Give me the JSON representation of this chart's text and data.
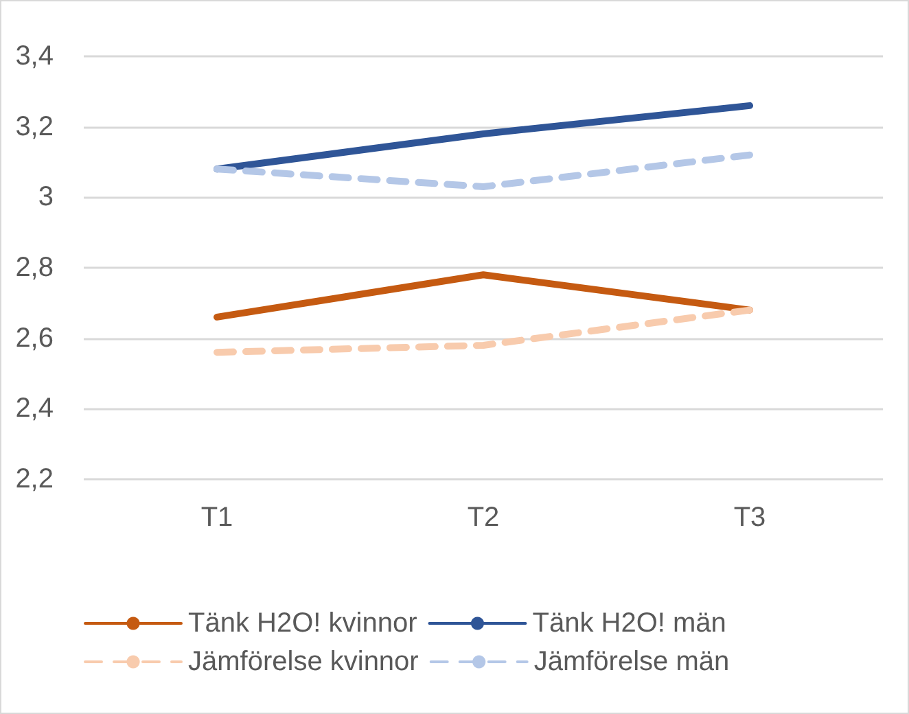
{
  "chart_data": {
    "type": "line",
    "categories": [
      "T1",
      "T2",
      "T3"
    ],
    "series": [
      {
        "name": "Tänk H2O! kvinnor",
        "color": "#c55a11",
        "line_style": "solid",
        "values": [
          2.66,
          2.78,
          2.68
        ]
      },
      {
        "name": "Tänk H2O! män",
        "color": "#2f5597",
        "line_style": "solid",
        "values": [
          3.08,
          3.18,
          3.26
        ]
      },
      {
        "name": "Jämförelse kvinnor",
        "color": "#f8cbad",
        "line_style": "dashed",
        "values": [
          2.56,
          2.58,
          2.68
        ]
      },
      {
        "name": "Jämförelse män",
        "color": "#b4c7e7",
        "line_style": "dashed",
        "values": [
          3.08,
          3.03,
          3.12
        ]
      }
    ],
    "ylim": [
      2.2,
      3.4
    ],
    "yticks": [
      {
        "value": 2.2,
        "label": "2,2"
      },
      {
        "value": 2.4,
        "label": "2,4"
      },
      {
        "value": 2.6,
        "label": "2,6"
      },
      {
        "value": 2.8,
        "label": "2,8"
      },
      {
        "value": 3,
        "label": "3"
      },
      {
        "value": 3.2,
        "label": "3,2"
      },
      {
        "value": 3.4,
        "label": "3,4"
      }
    ],
    "grid": "y",
    "legend": "bottom",
    "marker": "none"
  }
}
